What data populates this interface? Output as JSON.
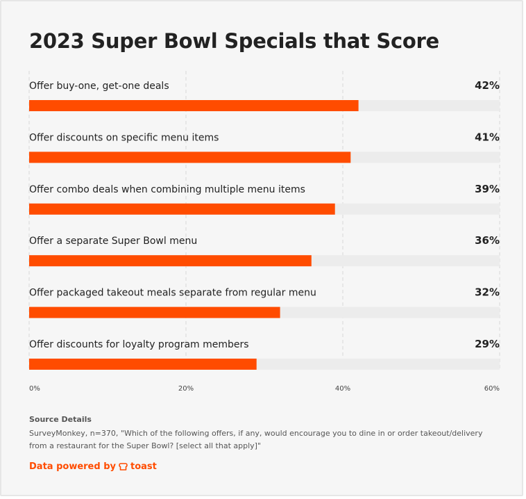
{
  "chart_data": {
    "type": "bar",
    "orientation": "horizontal",
    "title": "2023 Super Bowl Specials that Score",
    "categories": [
      "Offer buy-one, get-one deals",
      "Offer discounts on specific menu items",
      "Offer combo deals when combining multiple menu items",
      "Offer a separate Super Bowl menu",
      "Offer packaged takeout meals separate from regular menu",
      "Offer discounts for loyalty program members"
    ],
    "values": [
      42,
      41,
      39,
      36,
      32,
      29
    ],
    "value_labels": [
      "42%",
      "41%",
      "39%",
      "36%",
      "32%",
      "29%"
    ],
    "xlim": [
      0,
      60
    ],
    "x_ticks": [
      "0%",
      "20%",
      "40%",
      "60%"
    ],
    "grid": true,
    "colors": {
      "bar": "#ff4c00",
      "track": "#ececec",
      "grid": "#d8d8d8"
    }
  },
  "source": {
    "heading": "Source Details",
    "text": "SurveyMonkey, n=370, \"Which of the following offers, if any, would encourage you to dine in or order takeout/delivery from a restaurant for the Super Bowl? [select all that apply]\""
  },
  "footer": {
    "powered_by": "Data powered by",
    "brand": "toast",
    "brand_icon": "toast-logo-icon",
    "brand_color": "#ff4c00"
  }
}
